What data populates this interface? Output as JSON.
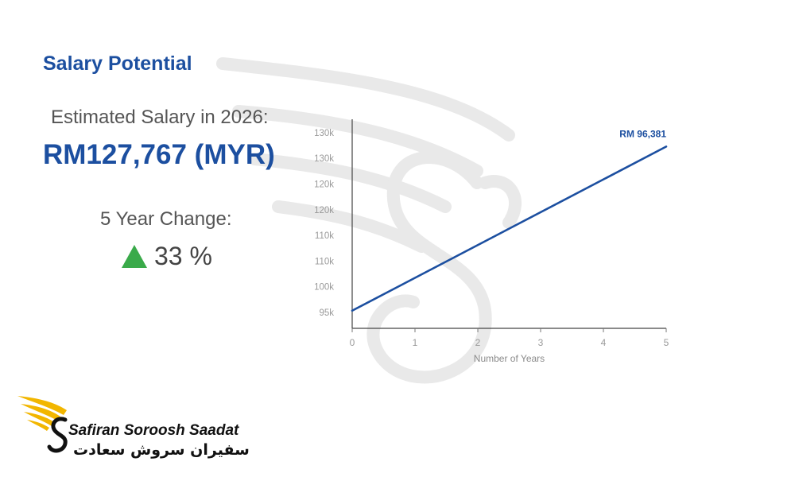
{
  "title": "Salary Potential",
  "estimate": {
    "label": "Estimated Salary in 2026:",
    "value": "RM127,767 (MYR)"
  },
  "change": {
    "label": "5 Year Change:",
    "value": "33 %",
    "icon": "triangle-up-icon",
    "color": "#3aaa4a"
  },
  "colors": {
    "accent": "#1c4fa0",
    "line": "#1c4fa0"
  },
  "chart_data": {
    "type": "line",
    "title": "",
    "xlabel": "Number of Years",
    "ylabel": "",
    "x_ticks": [
      "0",
      "1",
      "2",
      "3",
      "4",
      "5"
    ],
    "y_ticks": [
      "95k",
      "100k",
      "110k",
      "110k",
      "120k",
      "120k",
      "130k",
      "130k"
    ],
    "xlim": [
      0,
      5
    ],
    "ylim": [
      93000,
      133000
    ],
    "grid": false,
    "series": [
      {
        "x": [
          0,
          5
        ],
        "y": [
          96381,
          127767
        ]
      }
    ],
    "annotations": [
      {
        "text": "RM 96,381"
      }
    ]
  },
  "brand": {
    "name_en": "Safiran Soroosh Saadat",
    "name_fa": "سفیران سروش سعادت"
  }
}
